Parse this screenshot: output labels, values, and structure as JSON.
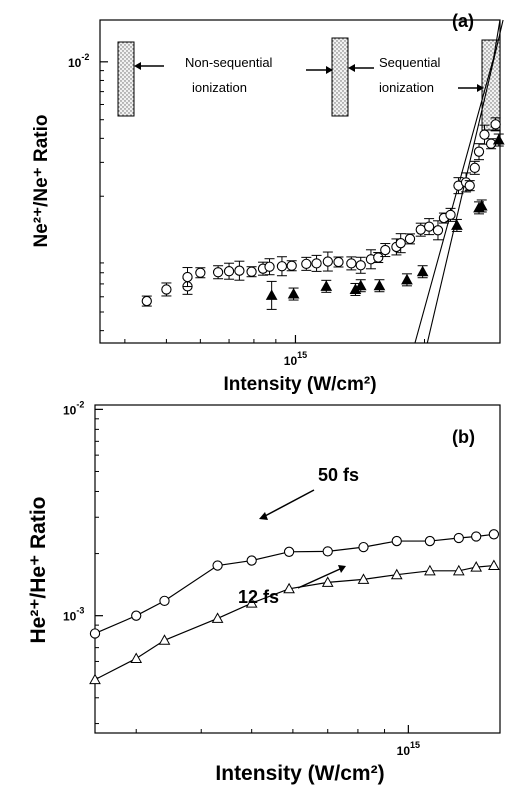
{
  "chart_data": [
    {
      "type": "scatter",
      "panel_label": "(a)",
      "xlabel": "Intensity (W/cm²)",
      "ylabel": "Ne²⁺/Ne⁺ Ratio",
      "x_scale": "log",
      "y_scale": "log",
      "xlim": [
        350000000000000.0,
        3000000000000000.0
      ],
      "ylim": [
        0.000345,
        0.0165
      ],
      "x_ticks": [
        {
          "value": 1000000000000000.0,
          "label": "10^15"
        }
      ],
      "y_ticks": [
        {
          "value": 0.01,
          "label": "10^-2"
        }
      ],
      "annotations": [
        {
          "text": "Non-sequential",
          "line2": "ionization"
        },
        {
          "text": "Sequential",
          "line2": "ionization"
        }
      ],
      "series": [
        {
          "marker": "open-circle",
          "x": [
            450000000000000.0,
            500000000000000.0,
            560000000000000.0,
            560000000000000.0,
            600000000000000.0,
            660000000000000.0,
            700000000000000.0,
            740000000000000.0,
            790000000000000.0,
            840000000000000.0,
            870000000000000.0,
            930000000000000.0,
            980000000000000.0,
            1060000000000000.0,
            1120000000000000.0,
            1190000000000000.0,
            1260000000000000.0,
            1350000000000000.0,
            1420000000000000.0,
            1500000000000000.0,
            1560000000000000.0,
            1620000000000000.0,
            1720000000000000.0,
            1760000000000000.0,
            1850000000000000.0,
            1960000000000000.0,
            2050000000000000.0,
            2150000000000000.0,
            2220000000000000.0,
            2300000000000000.0,
            2400000000000000.0,
            2500000000000000.0,
            2550000000000000.0,
            2620000000000000.0,
            2680000000000000.0,
            2760000000000000.0,
            2860000000000000.0,
            2930000000000000.0
          ],
          "y": [
            0.00057,
            0.000655,
            0.00068,
            0.00076,
            0.0008,
            0.000805,
            0.000815,
            0.00082,
            0.00081,
            0.00084,
            0.00086,
            0.000865,
            0.00087,
            0.00089,
            0.000895,
            0.000915,
            0.00091,
            0.000895,
            0.000875,
            0.00094,
            0.00096,
            0.00105,
            0.00109,
            0.00114,
            0.0012,
            0.00134,
            0.00139,
            0.00133,
            0.00154,
            0.0016,
            0.00227,
            0.00236,
            0.00227,
            0.00281,
            0.00341,
            0.00418,
            0.00375,
            0.00473
          ]
        },
        {
          "marker": "filled-triangle",
          "x": [
            880000000000000.0,
            990000000000000.0,
            1180000000000000.0,
            1380000000000000.0,
            1420000000000000.0,
            1570000000000000.0,
            1820000000000000.0,
            1980000000000000.0,
            2380000000000000.0,
            2680000000000000.0,
            2720000000000000.0,
            2980000000000000.0
          ],
          "y": [
            0.00061,
            0.00062,
            0.00068,
            0.000655,
            0.000685,
            0.000685,
            0.000735,
            0.00081,
            0.00141,
            0.00174,
            0.00178,
            0.00392
          ]
        },
        {
          "marker": "line",
          "x": [
            1900000000000000.0,
            2900000000000000.0,
            3000000000000000.0
          ],
          "y": [
            0.000345,
            0.01052,
            0.01655
          ]
        },
        {
          "marker": "line",
          "x": [
            2030000000000000.0,
            3050000000000000.0
          ],
          "y": [
            0.000345,
            0.0165
          ]
        }
      ]
    },
    {
      "type": "line",
      "panel_label": "(b)",
      "xlabel": "Intensity (W/cm²)",
      "ylabel": "He²⁺/He⁺ Ratio",
      "x_scale": "log",
      "y_scale": "log",
      "xlim": [
        250000000000000.0,
        1500000000000000.0
      ],
      "ylim": [
        0.00027,
        0.0105
      ],
      "x_ticks": [
        {
          "value": 1000000000000000.0,
          "label": "10^15"
        }
      ],
      "y_ticks": [
        {
          "value": 0.01,
          "label": "10^-2"
        },
        {
          "value": 0.001,
          "label": "10^-3"
        }
      ],
      "series": [
        {
          "name": "50 fs",
          "marker": "open-circle",
          "x": [
            250000000000000.0,
            300000000000000.0,
            340000000000000.0,
            430000000000000.0,
            500000000000000.0,
            590000000000000.0,
            700000000000000.0,
            820000000000000.0,
            950000000000000.0,
            1100000000000000.0,
            1250000000000000.0,
            1350000000000000.0,
            1460000000000000.0
          ],
          "y": [
            0.00082,
            0.001,
            0.00118,
            0.00175,
            0.00185,
            0.00204,
            0.00205,
            0.00215,
            0.0023,
            0.0023,
            0.00238,
            0.00242,
            0.00248
          ]
        },
        {
          "name": "12 fs",
          "marker": "open-triangle",
          "x": [
            250000000000000.0,
            300000000000000.0,
            340000000000000.0,
            430000000000000.0,
            500000000000000.0,
            590000000000000.0,
            700000000000000.0,
            820000000000000.0,
            950000000000000.0,
            1100000000000000.0,
            1250000000000000.0,
            1350000000000000.0,
            1460000000000000.0
          ],
          "y": [
            0.00049,
            0.00062,
            0.00076,
            0.00097,
            0.00115,
            0.00135,
            0.00145,
            0.0015,
            0.00158,
            0.00165,
            0.00165,
            0.00172,
            0.00175
          ]
        }
      ]
    }
  ]
}
